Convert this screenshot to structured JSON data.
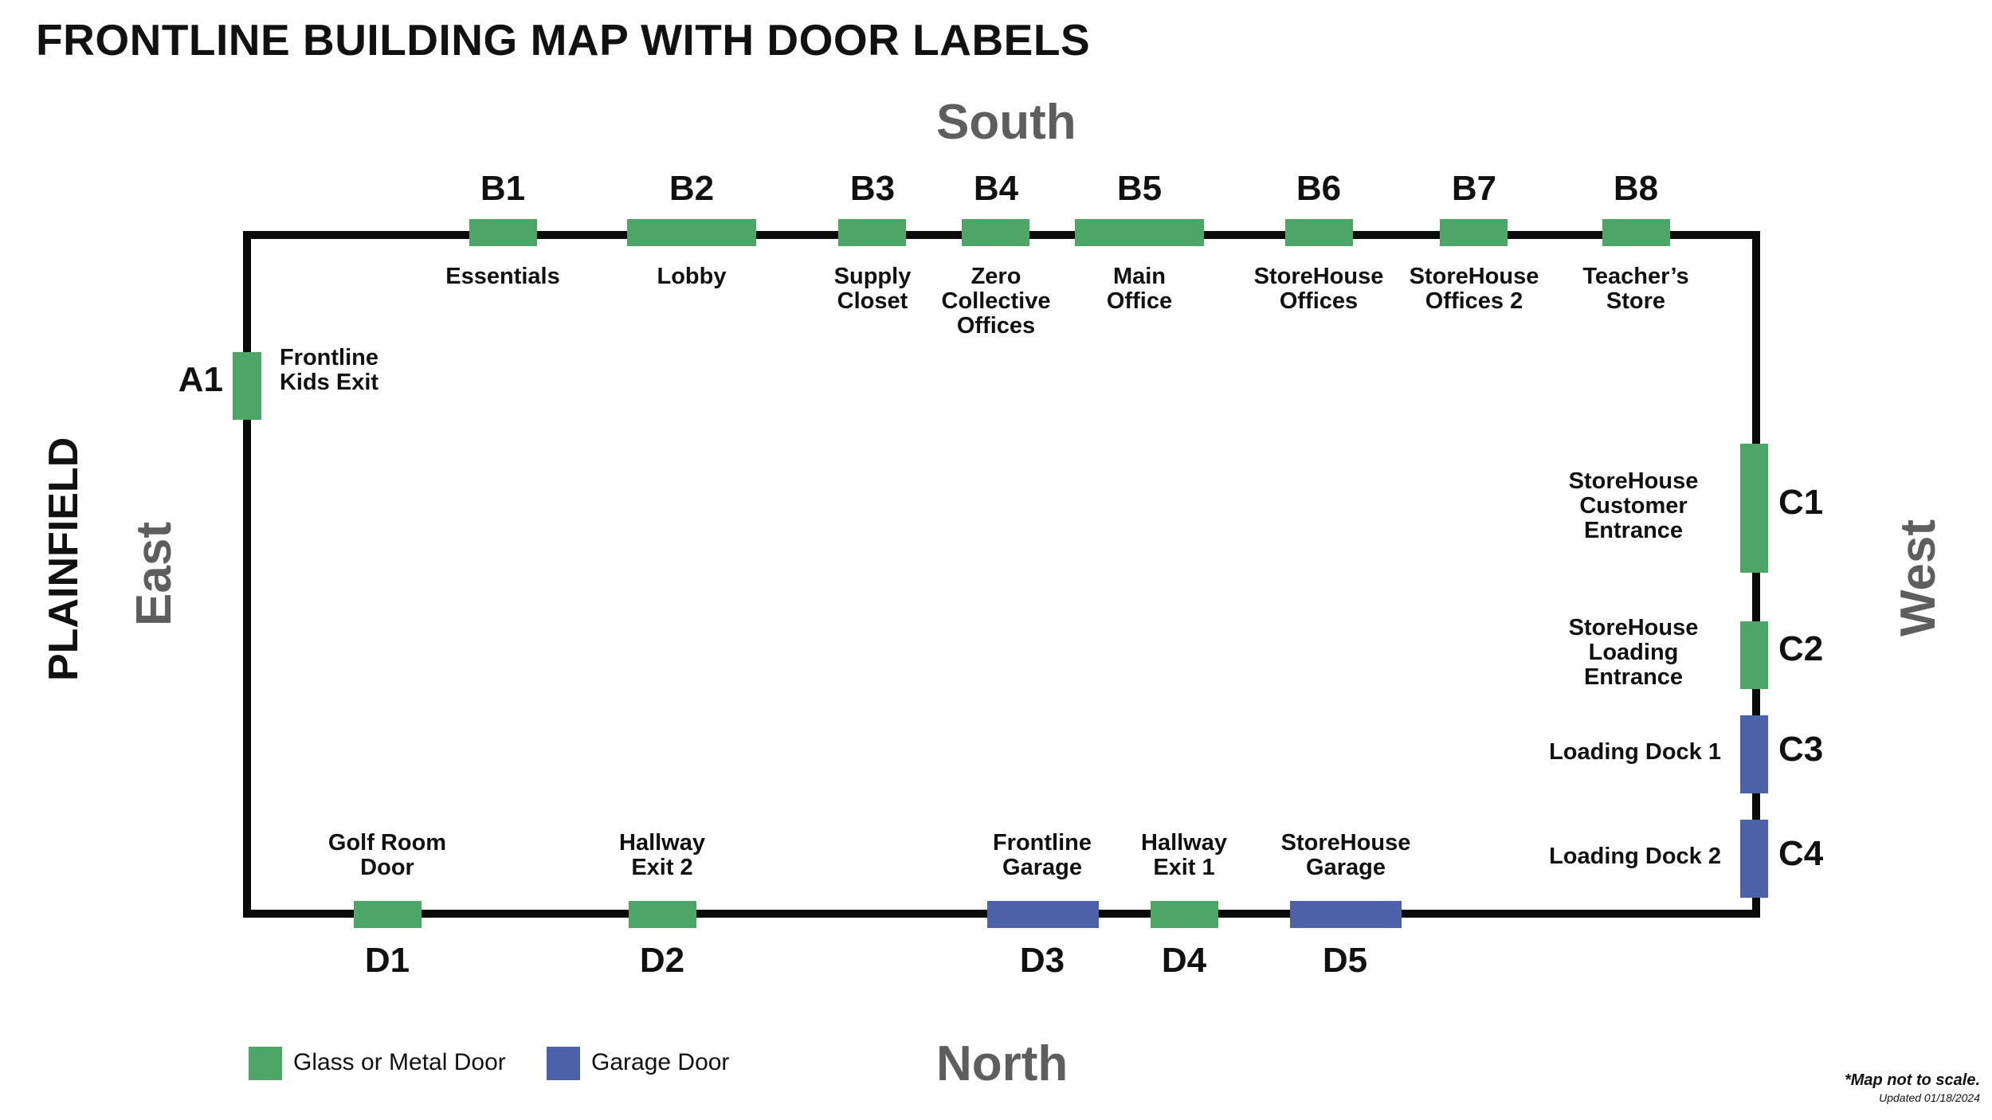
{
  "title": "FRONTLINE BUILDING MAP WITH DOOR LABELS",
  "compass": {
    "south": "South",
    "north": "North",
    "east": "East",
    "west": "West"
  },
  "street": "PLAINFIELD",
  "colors": {
    "glass_metal_door": "#4da566",
    "garage_door": "#4c62a8",
    "wall": "#0a0a0a",
    "compass_text": "#5e5e5e"
  },
  "doors": {
    "A1": {
      "code": "A1",
      "name": "Frontline Kids Exit",
      "type": "glass-metal"
    },
    "B1": {
      "code": "B1",
      "name": "Essentials",
      "type": "glass-metal"
    },
    "B2": {
      "code": "B2",
      "name": "Lobby",
      "type": "glass-metal"
    },
    "B3": {
      "code": "B3",
      "name": "Supply Closet",
      "type": "glass-metal"
    },
    "B4": {
      "code": "B4",
      "name": "Zero Collective Offices",
      "type": "glass-metal"
    },
    "B5": {
      "code": "B5",
      "name": "Main Office",
      "type": "glass-metal"
    },
    "B6": {
      "code": "B6",
      "name": "StoreHouse Offices",
      "type": "glass-metal"
    },
    "B7": {
      "code": "B7",
      "name": "StoreHouse Offices 2",
      "type": "glass-metal"
    },
    "B8": {
      "code": "B8",
      "name": "Teacher’s Store",
      "type": "glass-metal"
    },
    "C1": {
      "code": "C1",
      "name": "StoreHouse Customer Entrance",
      "type": "glass-metal"
    },
    "C2": {
      "code": "C2",
      "name": "StoreHouse Loading Entrance",
      "type": "glass-metal"
    },
    "C3": {
      "code": "C3",
      "name": "Loading Dock 1",
      "type": "garage"
    },
    "C4": {
      "code": "C4",
      "name": "Loading Dock 2",
      "type": "garage"
    },
    "D1": {
      "code": "D1",
      "name": "Golf Room Door",
      "type": "glass-metal"
    },
    "D2": {
      "code": "D2",
      "name": "Hallway Exit 2",
      "type": "glass-metal"
    },
    "D3": {
      "code": "D3",
      "name": "Frontline Garage",
      "type": "garage"
    },
    "D4": {
      "code": "D4",
      "name": "Hallway Exit 1",
      "type": "glass-metal"
    },
    "D5": {
      "code": "D5",
      "name": "StoreHouse Garage",
      "type": "garage"
    }
  },
  "legend": [
    {
      "label": "Glass or Metal Door",
      "color": "#4da566"
    },
    {
      "label": "Garage Door",
      "color": "#4c62a8"
    }
  ],
  "footnote": "*Map not to scale.",
  "updated": "Updated 01/18/2024"
}
